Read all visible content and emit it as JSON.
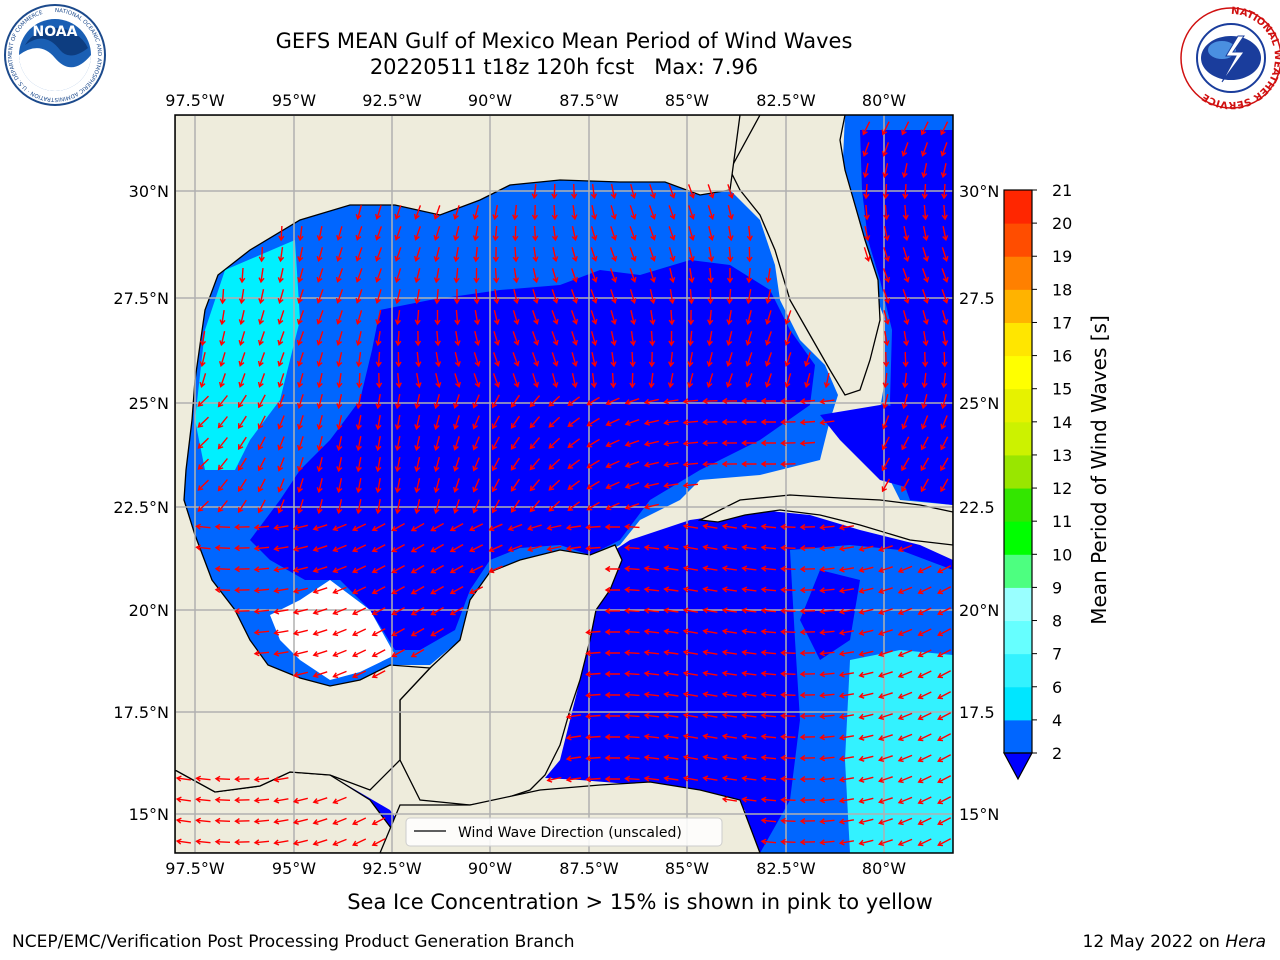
{
  "header": {
    "title_line1": "GEFS MEAN Gulf of Mexico Mean Period of Wind Waves",
    "title_line2": "20220511 t18z 120h fcst   Max: 7.96"
  },
  "logos": {
    "left": "NOAA",
    "left_ring": "NATIONAL OCEANIC AND ATMOSPHERIC ADMINISTRATION · U.S. DEPARTMENT OF COMMERCE",
    "right_ring": "NATIONAL WEATHER SERVICE"
  },
  "map": {
    "lon_labels": [
      "97.5°W",
      "95°W",
      "92.5°W",
      "90°W",
      "87.5°W",
      "85°W",
      "82.5°W",
      "80°W"
    ],
    "lat_labels": [
      "30°N",
      "27.5°N",
      "25°N",
      "22.5°N",
      "20°N",
      "17.5°N",
      "15°N"
    ],
    "lat_labels_right": [
      "30°N",
      "27.5",
      "25°N",
      "22.5",
      "20°N",
      "17.5",
      "15°N"
    ],
    "legend_label": "Wind Wave Direction (unscaled)",
    "arrow_color": "#ff0000",
    "land_color": "#eeecdc",
    "coast_color": "#000000"
  },
  "colorbar": {
    "label": "Mean Period of Wind Waves [s]",
    "ticks": [
      "2",
      "4",
      "6",
      "7",
      "8",
      "9",
      "10",
      "11",
      "12",
      "13",
      "14",
      "15",
      "16",
      "17",
      "18",
      "19",
      "20",
      "21"
    ],
    "colors": [
      "#0066ff",
      "#00e6ff",
      "#33f2ff",
      "#66ffff",
      "#99ffff",
      "#4dff80",
      "#00ff00",
      "#33e600",
      "#99e600",
      "#ccf200",
      "#e6f200",
      "#ffff00",
      "#ffe600",
      "#ffb300",
      "#ff8000",
      "#ff4d00",
      "#ff2600",
      "#ff0000"
    ],
    "under_color": "#0000ff"
  },
  "footer": {
    "ice_note": "Sea Ice Concentration > 15% is shown in pink to yellow",
    "credit_left": "NCEP/EMC/Verification Post Processing Product Generation Branch",
    "date": "12 May 2022 on",
    "machine": "Hera"
  }
}
